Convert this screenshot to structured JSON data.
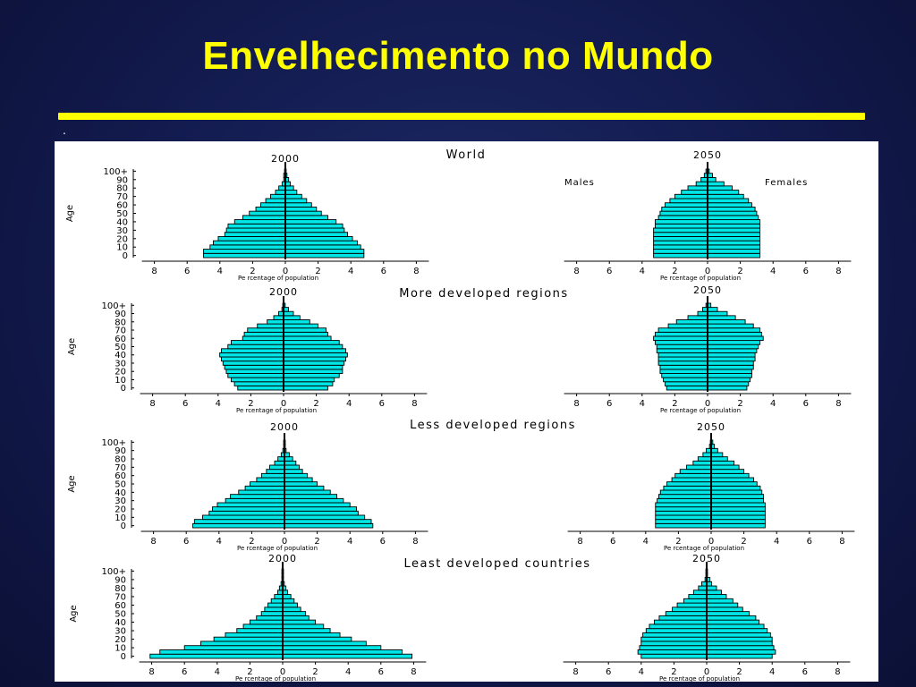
{
  "slide": {
    "title": "Envelhecimento no Mundo",
    "bullet": ".",
    "colors": {
      "background": "#141c52",
      "title": "#ffff00",
      "bar_fill": "#00e5e5",
      "bar_stroke": "#000000"
    }
  },
  "chart_data": [
    {
      "type": "bar",
      "orientation": "horizontal-pyramid",
      "region": "World",
      "year": "2000",
      "ylabel": "Age",
      "xlabel": "Pe rcentage of population",
      "age_ticks": [
        "0",
        "10",
        "20",
        "30",
        "40",
        "50",
        "60",
        "70",
        "80",
        "90",
        "100+"
      ],
      "x_ticks": [
        "8",
        "6",
        "4",
        "2",
        "0",
        "2",
        "4",
        "6",
        "8"
      ],
      "xlim": [
        -8,
        8
      ],
      "age_groups": [
        "0",
        "5",
        "10",
        "15",
        "20",
        "25",
        "30",
        "35",
        "40",
        "45",
        "50",
        "55",
        "60",
        "65",
        "70",
        "75",
        "80",
        "85",
        "90",
        "95",
        "100+"
      ],
      "males": [
        5.0,
        5.0,
        4.6,
        4.4,
        4.1,
        3.7,
        3.6,
        3.5,
        3.1,
        2.6,
        2.2,
        1.8,
        1.5,
        1.2,
        0.9,
        0.6,
        0.4,
        0.2,
        0.1,
        0.1,
        0.05
      ],
      "females": [
        4.8,
        4.8,
        4.6,
        4.4,
        4.1,
        3.8,
        3.6,
        3.5,
        3.1,
        2.6,
        2.2,
        1.9,
        1.6,
        1.3,
        1.0,
        0.7,
        0.5,
        0.3,
        0.2,
        0.1,
        0.05
      ]
    },
    {
      "type": "bar",
      "orientation": "horizontal-pyramid",
      "region": "World",
      "year": "2050",
      "males_label": "Males",
      "females_label": "Females",
      "xlabel": "Pe rcentage of population",
      "x_ticks": [
        "8",
        "6",
        "4",
        "2",
        "0",
        "2",
        "4",
        "6",
        "8"
      ],
      "xlim": [
        -8,
        8
      ],
      "age_groups": [
        "0",
        "5",
        "10",
        "15",
        "20",
        "25",
        "30",
        "35",
        "40",
        "45",
        "50",
        "55",
        "60",
        "65",
        "70",
        "75",
        "80",
        "85",
        "90",
        "95",
        "100+"
      ],
      "males": [
        3.3,
        3.3,
        3.3,
        3.3,
        3.3,
        3.3,
        3.3,
        3.2,
        3.2,
        3.0,
        2.9,
        2.8,
        2.6,
        2.3,
        2.0,
        1.6,
        1.2,
        0.7,
        0.4,
        0.2,
        0.1
      ],
      "females": [
        3.2,
        3.2,
        3.2,
        3.2,
        3.2,
        3.2,
        3.2,
        3.2,
        3.2,
        3.1,
        3.0,
        2.9,
        2.7,
        2.5,
        2.2,
        1.9,
        1.5,
        1.0,
        0.5,
        0.3,
        0.1
      ]
    },
    {
      "type": "bar",
      "orientation": "horizontal-pyramid",
      "region": "More developed regions",
      "year": "2000",
      "ylabel": "Age",
      "xlabel": "Pe rcentage of population",
      "age_ticks": [
        "0",
        "10",
        "20",
        "30",
        "40",
        "50",
        "60",
        "70",
        "80",
        "90",
        "100+"
      ],
      "x_ticks": [
        "8",
        "6",
        "4",
        "2",
        "0",
        "2",
        "4",
        "6",
        "8"
      ],
      "xlim": [
        -8,
        8
      ],
      "age_groups": [
        "0",
        "5",
        "10",
        "15",
        "20",
        "25",
        "30",
        "35",
        "40",
        "45",
        "50",
        "55",
        "60",
        "65",
        "70",
        "75",
        "80",
        "85",
        "90",
        "95",
        "100+"
      ],
      "males": [
        2.8,
        3.0,
        3.2,
        3.4,
        3.5,
        3.6,
        3.7,
        3.8,
        3.9,
        3.8,
        3.4,
        3.2,
        2.5,
        2.4,
        2.2,
        1.6,
        1.0,
        0.6,
        0.3,
        0.1,
        0.05
      ],
      "females": [
        2.7,
        3.0,
        3.1,
        3.4,
        3.6,
        3.6,
        3.7,
        3.8,
        3.9,
        3.8,
        3.6,
        3.4,
        2.9,
        2.7,
        2.6,
        2.1,
        1.6,
        1.0,
        0.6,
        0.3,
        0.1
      ]
    },
    {
      "type": "bar",
      "orientation": "horizontal-pyramid",
      "region": "More developed regions",
      "year": "2050",
      "xlabel": "Pe rcentage of population",
      "x_ticks": [
        "8",
        "6",
        "4",
        "2",
        "0",
        "2",
        "4",
        "6",
        "8"
      ],
      "xlim": [
        -8,
        8
      ],
      "age_groups": [
        "0",
        "5",
        "10",
        "15",
        "20",
        "25",
        "30",
        "35",
        "40",
        "45",
        "50",
        "55",
        "60",
        "65",
        "70",
        "75",
        "80",
        "85",
        "90",
        "95",
        "100+"
      ],
      "males": [
        2.5,
        2.6,
        2.7,
        2.8,
        2.9,
        2.9,
        3.0,
        3.0,
        3.0,
        3.1,
        3.1,
        3.2,
        3.3,
        3.2,
        3.0,
        2.4,
        1.9,
        1.2,
        0.6,
        0.3,
        0.1
      ],
      "females": [
        2.4,
        2.5,
        2.6,
        2.7,
        2.7,
        2.8,
        2.8,
        2.9,
        2.9,
        3.0,
        3.1,
        3.2,
        3.4,
        3.3,
        3.2,
        2.8,
        2.3,
        1.7,
        1.2,
        0.6,
        0.2
      ]
    },
    {
      "type": "bar",
      "orientation": "horizontal-pyramid",
      "region": "Less developed regions",
      "year": "2000",
      "ylabel": "Age",
      "xlabel": "Pe rcentage of population",
      "age_ticks": [
        "0",
        "10",
        "20",
        "30",
        "40",
        "50",
        "60",
        "70",
        "80",
        "90",
        "100+"
      ],
      "x_ticks": [
        "8",
        "6",
        "4",
        "2",
        "0",
        "2",
        "4",
        "6",
        "8"
      ],
      "xlim": [
        -8,
        8
      ],
      "age_groups": [
        "0",
        "5",
        "10",
        "15",
        "20",
        "25",
        "30",
        "35",
        "40",
        "45",
        "50",
        "55",
        "60",
        "65",
        "70",
        "75",
        "80",
        "85",
        "90",
        "95",
        "100+"
      ],
      "males": [
        5.6,
        5.5,
        5.0,
        4.6,
        4.4,
        4.1,
        3.6,
        3.3,
        2.8,
        2.4,
        2.1,
        1.7,
        1.4,
        1.1,
        0.9,
        0.6,
        0.4,
        0.2,
        0.1,
        0.05,
        0.05
      ],
      "females": [
        5.4,
        5.3,
        4.9,
        4.5,
        4.4,
        4.0,
        3.6,
        3.2,
        2.8,
        2.4,
        2.0,
        1.7,
        1.4,
        1.1,
        0.9,
        0.7,
        0.5,
        0.3,
        0.1,
        0.05,
        0.05
      ]
    },
    {
      "type": "bar",
      "orientation": "horizontal-pyramid",
      "region": "Less developed regions",
      "year": "2050",
      "xlabel": "Pe rcentage of population",
      "x_ticks": [
        "8",
        "6",
        "4",
        "2",
        "0",
        "2",
        "4",
        "6",
        "8"
      ],
      "xlim": [
        -8,
        8
      ],
      "age_groups": [
        "0",
        "5",
        "10",
        "15",
        "20",
        "25",
        "30",
        "35",
        "40",
        "45",
        "50",
        "55",
        "60",
        "65",
        "70",
        "75",
        "80",
        "85",
        "90",
        "95",
        "100+"
      ],
      "males": [
        3.4,
        3.4,
        3.4,
        3.4,
        3.4,
        3.4,
        3.3,
        3.2,
        3.1,
        2.9,
        2.7,
        2.4,
        2.2,
        1.9,
        1.5,
        1.1,
        0.8,
        0.5,
        0.3,
        0.1,
        0.05
      ],
      "females": [
        3.3,
        3.3,
        3.3,
        3.3,
        3.3,
        3.3,
        3.2,
        3.2,
        3.1,
        3.0,
        2.8,
        2.6,
        2.3,
        2.0,
        1.7,
        1.4,
        1.0,
        0.7,
        0.4,
        0.2,
        0.1
      ]
    },
    {
      "type": "bar",
      "orientation": "horizontal-pyramid",
      "region": "Least developed countries",
      "year": "2000",
      "ylabel": "Age",
      "xlabel": "Pe rcentage of population",
      "age_ticks": [
        "0",
        "10",
        "20",
        "30",
        "40",
        "50",
        "60",
        "70",
        "80",
        "90",
        "100+"
      ],
      "x_ticks": [
        "8",
        "6",
        "4",
        "2",
        "0",
        "2",
        "4",
        "6",
        "8"
      ],
      "xlim": [
        -8,
        8
      ],
      "age_groups": [
        "0",
        "5",
        "10",
        "15",
        "20",
        "25",
        "30",
        "35",
        "40",
        "45",
        "50",
        "55",
        "60",
        "65",
        "70",
        "75",
        "80",
        "85",
        "90",
        "95",
        "100+"
      ],
      "males": [
        8.1,
        7.5,
        6.0,
        5.0,
        4.2,
        3.5,
        2.8,
        2.4,
        2.0,
        1.6,
        1.3,
        1.1,
        0.9,
        0.7,
        0.5,
        0.3,
        0.2,
        0.1,
        0.05,
        0.05,
        0.05
      ],
      "females": [
        7.9,
        7.3,
        6.0,
        5.1,
        4.2,
        3.5,
        2.9,
        2.5,
        2.0,
        1.6,
        1.4,
        1.1,
        0.9,
        0.7,
        0.5,
        0.3,
        0.2,
        0.1,
        0.05,
        0.05,
        0.05
      ]
    },
    {
      "type": "bar",
      "orientation": "horizontal-pyramid",
      "region": "Least developed countries",
      "year": "2050",
      "xlabel": "Pe rcentage of population",
      "x_ticks": [
        "8",
        "6",
        "4",
        "2",
        "0",
        "2",
        "4",
        "6",
        "8"
      ],
      "xlim": [
        -8,
        8
      ],
      "age_groups": [
        "0",
        "5",
        "10",
        "15",
        "20",
        "25",
        "30",
        "35",
        "40",
        "45",
        "50",
        "55",
        "60",
        "65",
        "70",
        "75",
        "80",
        "85",
        "90",
        "95",
        "100+"
      ],
      "males": [
        4.0,
        4.2,
        4.1,
        4.0,
        4.0,
        3.9,
        3.7,
        3.5,
        3.2,
        2.9,
        2.5,
        2.1,
        1.8,
        1.4,
        1.1,
        0.8,
        0.5,
        0.3,
        0.1,
        0.05,
        0.05
      ],
      "females": [
        4.0,
        4.2,
        4.1,
        4.0,
        4.0,
        3.9,
        3.7,
        3.5,
        3.2,
        3.0,
        2.6,
        2.2,
        1.9,
        1.6,
        1.2,
        0.9,
        0.6,
        0.3,
        0.2,
        0.05,
        0.05
      ]
    }
  ]
}
